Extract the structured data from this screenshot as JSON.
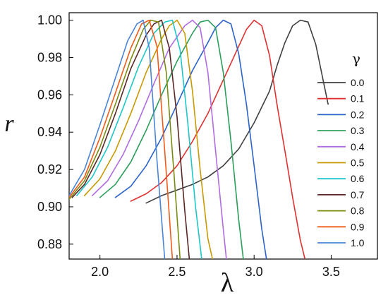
{
  "chart_data": {
    "type": "line",
    "xlabel": "λ",
    "ylabel": "r",
    "xlim": [
      1.8,
      3.8
    ],
    "ylim": [
      0.872,
      1.004
    ],
    "xticks": [
      "2.0",
      "2.5",
      "3.0",
      "3.5"
    ],
    "yticks": [
      "0.88",
      "0.90",
      "0.92",
      "0.94",
      "0.96",
      "0.98",
      "1.00"
    ],
    "grid": false,
    "legend": {
      "title": "γ",
      "placement": "right"
    },
    "series": [
      {
        "name": "0.0",
        "color": "#404040",
        "x": [
          2.3,
          2.4,
          2.5,
          2.6,
          2.7,
          2.8,
          2.9,
          3.0,
          3.1,
          3.15,
          3.2,
          3.25,
          3.3,
          3.35,
          3.4,
          3.45,
          3.48
        ],
        "y": [
          0.902,
          0.906,
          0.909,
          0.912,
          0.916,
          0.922,
          0.931,
          0.945,
          0.962,
          0.976,
          0.988,
          0.997,
          1.0,
          0.999,
          0.987,
          0.967,
          0.955
        ]
      },
      {
        "name": "0.1",
        "color": "#e03030",
        "x": [
          2.2,
          2.3,
          2.4,
          2.5,
          2.6,
          2.7,
          2.8,
          2.9,
          2.95,
          3.0,
          3.05,
          3.1,
          3.15,
          3.2,
          3.25,
          3.3,
          3.33
        ],
        "y": [
          0.903,
          0.907,
          0.913,
          0.922,
          0.935,
          0.95,
          0.968,
          0.986,
          0.995,
          1.0,
          0.997,
          0.981,
          0.954,
          0.93,
          0.905,
          0.882,
          0.872
        ]
      },
      {
        "name": "0.2",
        "color": "#2b63c8",
        "x": [
          2.1,
          2.2,
          2.3,
          2.4,
          2.5,
          2.6,
          2.7,
          2.75,
          2.8,
          2.85,
          2.9,
          2.95,
          3.0,
          3.05,
          3.08
        ],
        "y": [
          0.905,
          0.911,
          0.922,
          0.937,
          0.955,
          0.973,
          0.988,
          0.996,
          1.0,
          0.998,
          0.982,
          0.955,
          0.922,
          0.888,
          0.872
        ]
      },
      {
        "name": "0.3",
        "color": "#2b9e5a",
        "x": [
          2.0,
          2.1,
          2.2,
          2.3,
          2.4,
          2.5,
          2.6,
          2.65,
          2.7,
          2.75,
          2.8,
          2.85,
          2.9,
          2.93
        ],
        "y": [
          0.905,
          0.912,
          0.924,
          0.941,
          0.96,
          0.978,
          0.993,
          0.999,
          1.0,
          0.996,
          0.972,
          0.935,
          0.893,
          0.872
        ]
      },
      {
        "name": "0.4",
        "color": "#b06be0",
        "x": [
          1.95,
          2.05,
          2.15,
          2.25,
          2.35,
          2.45,
          2.55,
          2.6,
          2.65,
          2.7,
          2.75,
          2.8,
          2.82
        ],
        "y": [
          0.906,
          0.914,
          0.928,
          0.946,
          0.966,
          0.985,
          0.997,
          1.0,
          0.996,
          0.972,
          0.93,
          0.888,
          0.872
        ]
      },
      {
        "name": "0.5",
        "color": "#c89a00",
        "x": [
          1.9,
          2.0,
          2.1,
          2.2,
          2.3,
          2.4,
          2.45,
          2.5,
          2.55,
          2.6,
          2.65,
          2.7,
          2.73
        ],
        "y": [
          0.906,
          0.915,
          0.93,
          0.95,
          0.972,
          0.99,
          0.997,
          1.0,
          0.993,
          0.962,
          0.92,
          0.883,
          0.872
        ]
      },
      {
        "name": "0.6",
        "color": "#1fc6c8",
        "x": [
          1.85,
          1.95,
          2.05,
          2.15,
          2.25,
          2.35,
          2.42,
          2.47,
          2.52,
          2.57,
          2.62,
          2.66
        ],
        "y": [
          0.906,
          0.916,
          0.932,
          0.953,
          0.975,
          0.993,
          0.999,
          1.0,
          0.984,
          0.945,
          0.9,
          0.872
        ]
      },
      {
        "name": "0.7",
        "color": "#5a2626",
        "x": [
          1.82,
          1.9,
          2.0,
          2.1,
          2.2,
          2.3,
          2.35,
          2.4,
          2.45,
          2.5,
          2.55,
          2.58
        ],
        "y": [
          0.905,
          0.912,
          0.928,
          0.95,
          0.974,
          0.992,
          0.998,
          1.0,
          0.985,
          0.948,
          0.898,
          0.872
        ]
      },
      {
        "name": "0.8",
        "color": "#7b8a10",
        "x": [
          1.8,
          1.9,
          2.0,
          2.1,
          2.2,
          2.28,
          2.33,
          2.38,
          2.43,
          2.48,
          2.52
        ],
        "y": [
          0.904,
          0.914,
          0.932,
          0.955,
          0.979,
          0.995,
          1.0,
          0.999,
          0.972,
          0.918,
          0.872
        ]
      },
      {
        "name": "0.9",
        "color": "#f05a18",
        "x": [
          1.8,
          1.9,
          2.0,
          2.1,
          2.2,
          2.27,
          2.32,
          2.37,
          2.42,
          2.47
        ],
        "y": [
          0.905,
          0.916,
          0.937,
          0.961,
          0.985,
          0.998,
          1.0,
          0.986,
          0.93,
          0.872
        ]
      },
      {
        "name": "1.0",
        "color": "#4a84d6",
        "x": [
          1.8,
          1.9,
          2.0,
          2.1,
          2.18,
          2.24,
          2.28,
          2.32,
          2.37,
          2.42
        ],
        "y": [
          0.906,
          0.92,
          0.944,
          0.969,
          0.989,
          0.998,
          1.0,
          0.985,
          0.925,
          0.872
        ]
      }
    ]
  }
}
